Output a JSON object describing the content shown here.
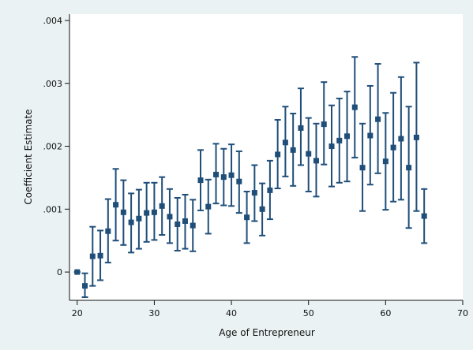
{
  "chart_data": {
    "type": "scatter",
    "title": "",
    "xlabel": "Age of Entrepreneur",
    "ylabel": "Coefficient Estimate",
    "xlim": [
      19,
      70
    ],
    "ylim": [
      -0.00045,
      0.0041
    ],
    "xticks": [
      20,
      30,
      40,
      50,
      60,
      70
    ],
    "yticks": [
      0,
      0.001,
      0.002,
      0.003,
      0.004
    ],
    "xtick_labels": [
      "20",
      "30",
      "40",
      "50",
      "60",
      "70"
    ],
    "ytick_labels": [
      "0",
      ".001",
      ".002",
      ".003",
      ".004"
    ],
    "grid": false,
    "legend": "none",
    "colors": {
      "page_background": "#eaf2f3",
      "plot_background": "#ffffff",
      "series": "#1f4e79",
      "axis": "#111111"
    },
    "series": [
      {
        "x": [
          20,
          21,
          22,
          23,
          24,
          25,
          26,
          27,
          28,
          29,
          30,
          31,
          32,
          33,
          34,
          35,
          36,
          37,
          38,
          39,
          40,
          41,
          42,
          43,
          44,
          45,
          46,
          47,
          48,
          49,
          50,
          51,
          52,
          53,
          54,
          55,
          56,
          57,
          58,
          59,
          60,
          61,
          62,
          63,
          64,
          65
        ],
        "y": [
          0.0,
          -0.00022,
          0.00025,
          0.00026,
          0.00065,
          0.00107,
          0.00095,
          0.00079,
          0.00085,
          0.00094,
          0.00095,
          0.00105,
          0.00088,
          0.00076,
          0.00081,
          0.00074,
          0.00146,
          0.00104,
          0.00155,
          0.00151,
          0.00154,
          0.00144,
          0.00087,
          0.00126,
          0.001,
          0.0013,
          0.00187,
          0.00206,
          0.00194,
          0.00229,
          0.00188,
          0.00177,
          0.00235,
          0.002,
          0.00209,
          0.00216,
          0.00262,
          0.00166,
          0.00217,
          0.00243,
          0.00176,
          0.00198,
          0.00212,
          0.00166,
          0.00214,
          0.00089
        ],
        "low": [
          0.0,
          -0.0004,
          -0.00022,
          -0.00013,
          0.00015,
          0.0005,
          0.00043,
          0.00031,
          0.00037,
          0.00048,
          0.00051,
          0.00059,
          0.00046,
          0.00034,
          0.00037,
          0.00033,
          0.00098,
          0.00061,
          0.00109,
          0.00106,
          0.00105,
          0.00094,
          0.00046,
          0.00081,
          0.00058,
          0.00084,
          0.00133,
          0.00152,
          0.00137,
          0.0017,
          0.00128,
          0.0012,
          0.00171,
          0.00136,
          0.00142,
          0.00144,
          0.00182,
          0.00097,
          0.00139,
          0.00157,
          0.00099,
          0.00112,
          0.00115,
          0.0007,
          0.00097,
          0.00046
        ],
        "high": [
          0.0,
          -2e-05,
          0.00072,
          0.00066,
          0.00116,
          0.00164,
          0.00146,
          0.00125,
          0.00131,
          0.00142,
          0.00142,
          0.00151,
          0.00132,
          0.00118,
          0.00123,
          0.00115,
          0.00194,
          0.00147,
          0.00204,
          0.00196,
          0.00203,
          0.00192,
          0.00128,
          0.0017,
          0.00141,
          0.00177,
          0.00242,
          0.00263,
          0.00252,
          0.00292,
          0.00245,
          0.00236,
          0.00302,
          0.00265,
          0.00276,
          0.00287,
          0.00342,
          0.00236,
          0.00296,
          0.00331,
          0.00253,
          0.00285,
          0.0031,
          0.00263,
          0.00333,
          0.00132
        ]
      }
    ]
  }
}
